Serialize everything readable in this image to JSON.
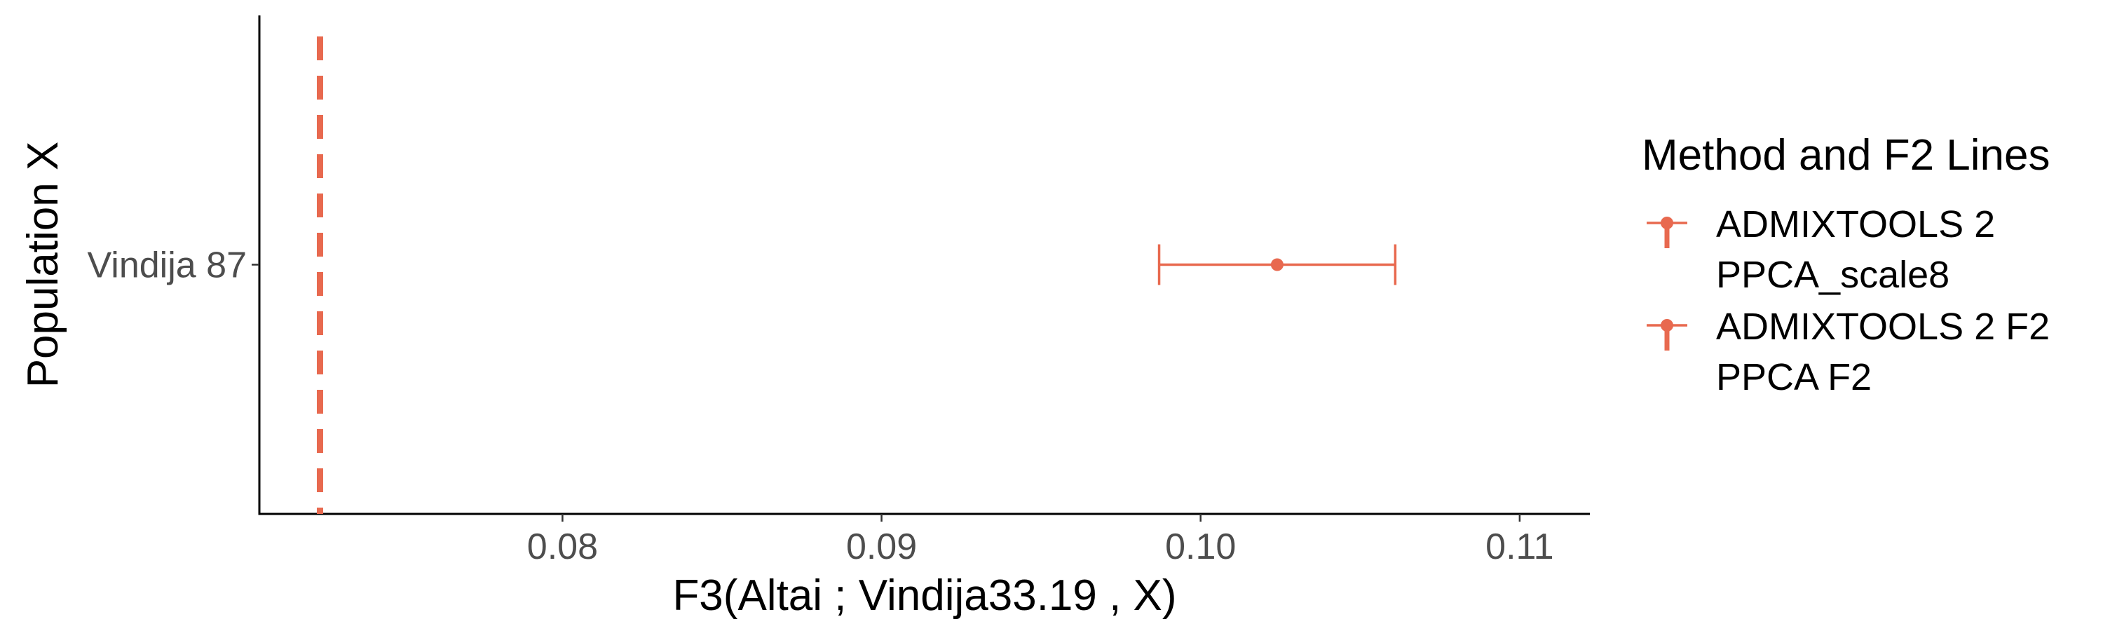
{
  "chart_data": {
    "type": "scatter",
    "title": "",
    "xlabel": "F3(Altai ; Vindija33.19 , X)",
    "ylabel": "Population X",
    "xlim": [
      0.0705,
      0.1122
    ],
    "x_ticks": [
      0.08,
      0.09,
      0.1,
      0.11
    ],
    "x_tick_labels": [
      "0.08",
      "0.09",
      "0.10",
      "0.11"
    ],
    "categories": [
      "Vindija 87"
    ],
    "grid": false,
    "legend_position": "right",
    "legend_title": "Method and F2 Lines",
    "color": "#E8694F",
    "series": [
      {
        "name": "ADMIXTOOLS 2 PPCA_scale8",
        "name_lines": [
          "ADMIXTOOLS 2",
          "PPCA_scale8"
        ],
        "points": [
          {
            "category": "Vindija 87",
            "estimate": 0.1024,
            "lower": 0.0987,
            "upper": 0.1061
          }
        ]
      },
      {
        "name": "ADMIXTOOLS 2 F2 PPCA F2",
        "name_lines": [
          "ADMIXTOOLS 2 F2",
          "PPCA F2"
        ],
        "points": []
      }
    ],
    "reference_lines": [
      {
        "x": 0.0724,
        "style": "dashed"
      }
    ]
  }
}
